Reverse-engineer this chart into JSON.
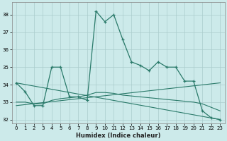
{
  "xlabel": "Humidex (Indice chaleur)",
  "bg_color": "#cceaea",
  "grid_color": "#aacccc",
  "line_color": "#2a7a6a",
  "xlim": [
    -0.5,
    23.5
  ],
  "ylim": [
    31.8,
    38.7
  ],
  "yticks": [
    32,
    33,
    34,
    35,
    36,
    37,
    38
  ],
  "xticks": [
    0,
    1,
    2,
    3,
    4,
    5,
    6,
    7,
    8,
    9,
    10,
    11,
    12,
    13,
    14,
    15,
    16,
    17,
    18,
    19,
    20,
    21,
    22,
    23
  ],
  "main_x": [
    0,
    1,
    2,
    3,
    4,
    5,
    6,
    7,
    8,
    9,
    10,
    11,
    12,
    13,
    14,
    15,
    16,
    17,
    18,
    19,
    20,
    21,
    22,
    23
  ],
  "main_y": [
    34.1,
    33.6,
    32.8,
    32.8,
    35.0,
    35.0,
    33.3,
    33.3,
    33.1,
    38.2,
    37.6,
    38.0,
    36.6,
    35.3,
    35.1,
    34.8,
    35.3,
    35.0,
    35.0,
    34.2,
    34.2,
    32.5,
    32.1,
    32.0
  ],
  "smooth_x": [
    0,
    1,
    2,
    3,
    4,
    5,
    6,
    7,
    8,
    9,
    10,
    11,
    12,
    13,
    14,
    15,
    16,
    17,
    18,
    19,
    20,
    21,
    22,
    23
  ],
  "smooth_y": [
    33.0,
    33.0,
    32.9,
    32.9,
    33.1,
    33.2,
    33.25,
    33.3,
    33.4,
    33.55,
    33.55,
    33.5,
    33.4,
    33.35,
    33.3,
    33.25,
    33.2,
    33.15,
    33.1,
    33.05,
    33.0,
    32.9,
    32.7,
    32.5
  ],
  "trend1_x": [
    0,
    23
  ],
  "trend1_y": [
    34.1,
    32.0
  ],
  "trend2_x": [
    0,
    23
  ],
  "trend2_y": [
    32.8,
    34.1
  ]
}
